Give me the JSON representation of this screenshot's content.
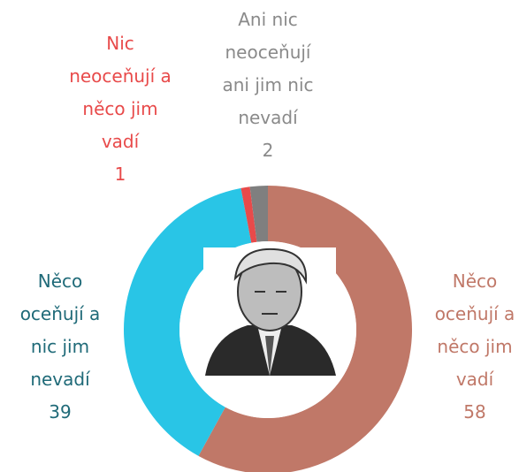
{
  "chart_data": {
    "type": "donut",
    "categories": [
      "Něco oceňují a něco jim vadí",
      "Něco oceňují a nic jim nevadí",
      "Nic neoceňují a něco jim vadí",
      "Ani nic neoceňují ani jim nic nevadí"
    ],
    "values": [
      58,
      39,
      1,
      2
    ],
    "colors": [
      "#c07868",
      "#29c5e6",
      "#e84a4a",
      "#7f7f7f"
    ],
    "label_colors": [
      "#c07868",
      "#1f6a78",
      "#e84a4a",
      "#8a8a8a"
    ]
  }
}
